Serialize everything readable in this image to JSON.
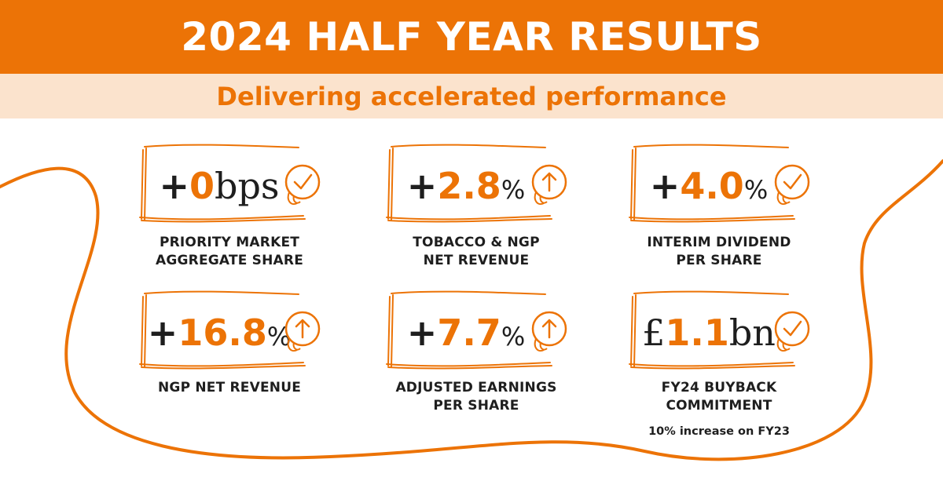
{
  "header": {
    "title": "2024 HALF YEAR RESULTS"
  },
  "subheader": {
    "title": "Delivering accelerated performance"
  },
  "colors": {
    "accent": "#ec7306",
    "light": "#fbe3cd",
    "text": "#1e1e1e"
  },
  "metrics": [
    {
      "prefix": "+",
      "value": "0",
      "suffix": "bps",
      "icon": "check-icon",
      "label": [
        "PRIORITY MARKET",
        "AGGREGATE SHARE"
      ],
      "note": ""
    },
    {
      "prefix": "+",
      "value": "2.8",
      "suffix": "%",
      "icon": "arrow-up-icon",
      "label": [
        "TOBACCO & NGP",
        "NET REVENUE"
      ],
      "note": ""
    },
    {
      "prefix": "+",
      "value": "4.0",
      "suffix": "%",
      "icon": "check-icon",
      "label": [
        "INTERIM DIVIDEND",
        "PER SHARE"
      ],
      "note": ""
    },
    {
      "prefix": "+",
      "value": "16.8",
      "suffix": "%",
      "icon": "arrow-up-icon",
      "label": [
        "NGP NET REVENUE"
      ],
      "note": ""
    },
    {
      "prefix": "+",
      "value": "7.7",
      "suffix": "%",
      "icon": "arrow-up-icon",
      "label": [
        "ADJUSTED EARNINGS",
        "PER SHARE"
      ],
      "note": ""
    },
    {
      "prefix": "£",
      "value": "1.1",
      "suffix": "bn",
      "icon": "check-icon",
      "label": [
        "FY24 BUYBACK",
        "COMMITMENT"
      ],
      "note": "10% increase on FY23"
    }
  ]
}
